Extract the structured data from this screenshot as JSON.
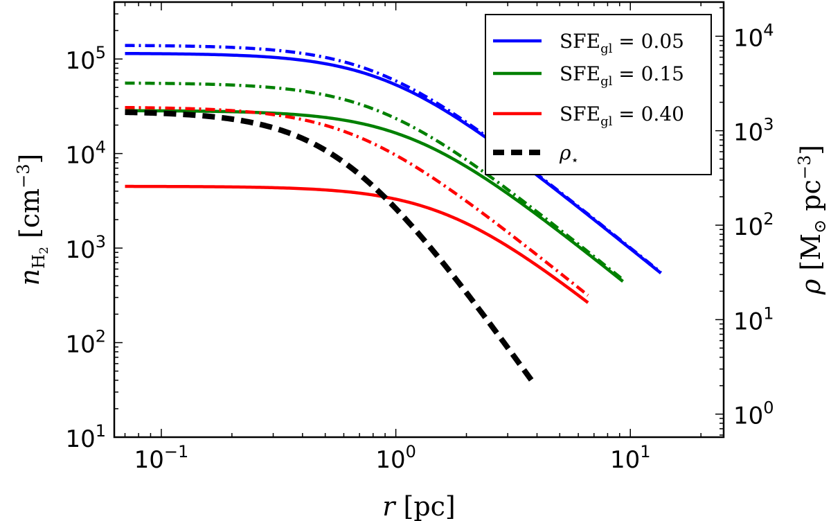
{
  "chart_data": {
    "type": "line",
    "xscale": "log",
    "yscale": "log",
    "xlim": [
      0.063,
      25
    ],
    "ylim": [
      10,
      400000
    ],
    "y2lim": [
      0.57,
      23000
    ],
    "xlabel": {
      "italic": "r",
      "unit": "[pc]"
    },
    "ylabel": {
      "italic": "n",
      "sub": "H",
      "sub2": "2",
      "unit": "[cm",
      "unit_sup": "−3",
      "unit_close": "]"
    },
    "y2label": {
      "italic": "ρ",
      "unit": "[M",
      "unit_sub": "⊙",
      "unit_mid": " pc",
      "unit_sup": "−3",
      "unit_close": "]"
    },
    "xticks": [
      {
        "value": 0.1,
        "base": "10",
        "exp": "−1"
      },
      {
        "value": 1,
        "base": "10",
        "exp": "0"
      },
      {
        "value": 10,
        "base": "10",
        "exp": "1"
      }
    ],
    "yticks": [
      {
        "value": 10,
        "base": "10",
        "exp": "1"
      },
      {
        "value": 100,
        "base": "10",
        "exp": "2"
      },
      {
        "value": 1000,
        "base": "10",
        "exp": "3"
      },
      {
        "value": 10000,
        "base": "10",
        "exp": "4"
      },
      {
        "value": 100000,
        "base": "10",
        "exp": "5"
      }
    ],
    "y2ticks": [
      {
        "value": 1,
        "base": "10",
        "exp": "0"
      },
      {
        "value": 10,
        "base": "10",
        "exp": "1"
      },
      {
        "value": 100,
        "base": "10",
        "exp": "2"
      },
      {
        "value": 1000,
        "base": "10",
        "exp": "3"
      },
      {
        "value": 10000,
        "base": "10",
        "exp": "4"
      }
    ],
    "legend": {
      "position": "top-right",
      "entries": [
        {
          "label": "SFE",
          "sub": "gl",
          "value": " = 0.05",
          "color": "#0000ff",
          "style": "solid"
        },
        {
          "label": "SFE",
          "sub": "gl",
          "value": " = 0.15",
          "color": "#008000",
          "style": "solid"
        },
        {
          "label": "SFE",
          "sub": "gl",
          "value": " = 0.40",
          "color": "#ff0000",
          "style": "solid"
        },
        {
          "label": "ρ",
          "sub": "⋆",
          "value": "",
          "color": "#000000",
          "style": "dashed"
        }
      ]
    },
    "series": [
      {
        "name": "SFE_gl = 0.05 (dash-dot)",
        "color": "#0000ff",
        "style": "dashdot",
        "n0": 140000,
        "rc": 0.85,
        "p": 2,
        "rmin": 0.07,
        "rmax": 13.5
      },
      {
        "name": "SFE_gl = 0.05",
        "color": "#0000ff",
        "style": "solid",
        "n0": 115000,
        "rc": 0.93,
        "p": 2,
        "rmin": 0.07,
        "rmax": 13.5
      },
      {
        "name": "SFE_gl = 0.15 (dash-dot)",
        "color": "#008000",
        "style": "dashdot",
        "n0": 56000,
        "rc": 0.85,
        "p": 2,
        "rmin": 0.07,
        "rmax": 9.3
      },
      {
        "name": "SFE_gl = 0.15",
        "color": "#008000",
        "style": "solid",
        "n0": 28500,
        "rc": 1.17,
        "p": 2,
        "rmin": 0.07,
        "rmax": 9.3
      },
      {
        "name": "SFE_gl = 0.40 (dash-dot)",
        "color": "#ff0000",
        "style": "dashdot",
        "n0": 31000,
        "rc": 0.67,
        "p": 2,
        "rmin": 0.07,
        "rmax": 6.6
      },
      {
        "name": "SFE_gl = 0.40",
        "color": "#ff0000",
        "style": "solid",
        "n0": 4500,
        "rc": 1.65,
        "p": 2,
        "rmin": 0.07,
        "rmax": 6.6
      },
      {
        "name": "rho_star",
        "color": "#000000",
        "style": "dashed",
        "n0": 28000,
        "rc": 0.59,
        "p": 3.5,
        "rmin": 0.07,
        "rmax": 3.9
      }
    ]
  }
}
